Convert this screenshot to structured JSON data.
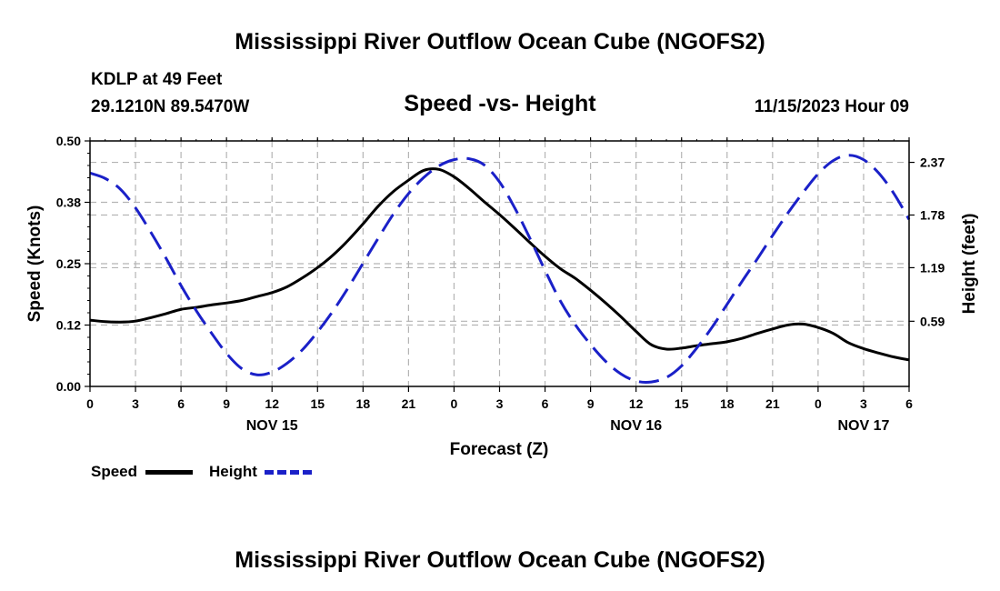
{
  "titles": {
    "main": "Mississippi River Outflow Ocean Cube (NGOFS2)",
    "main_repeat": "Mississippi River Outflow Ocean Cube (NGOFS2)"
  },
  "station": {
    "name": "KDLP at 49 Feet",
    "coords": "29.1210N  89.5470W",
    "datetime": "11/15/2023 Hour 09"
  },
  "legend": {
    "speed_label": "Speed",
    "height_label": "Height"
  },
  "colors": {
    "speed": "#000000",
    "height": "#1a20c8",
    "grid": "#b4b4b4"
  },
  "chart_data": {
    "type": "line",
    "title": "Speed -vs- Height",
    "xlabel": "Forecast (Z)",
    "ylabel": "Speed (Knots)",
    "y2label": "Height (feet)",
    "xlim": [
      0,
      54
    ],
    "ylim": [
      0,
      0.5
    ],
    "y2lim": [
      -0.14,
      2.61
    ],
    "x_ticks": [
      0,
      3,
      6,
      9,
      12,
      15,
      18,
      21,
      24,
      27,
      30,
      33,
      36,
      39,
      42,
      45,
      48,
      51,
      54
    ],
    "x_tick_labels": [
      "0",
      "3",
      "6",
      "9",
      "12",
      "15",
      "18",
      "21",
      "0",
      "3",
      "6",
      "9",
      "12",
      "15",
      "18",
      "21",
      "0",
      "3",
      "6"
    ],
    "y_ticks": [
      0,
      0.125,
      0.25,
      0.375,
      0.5
    ],
    "y_tick_labels": [
      "0.00",
      "0.12",
      "0.25",
      "0.38",
      "0.50"
    ],
    "y2_ticks": [
      0.59,
      1.19,
      1.78,
      2.37
    ],
    "y2_tick_labels": [
      "0.59",
      "1.19",
      "1.78",
      "2.37"
    ],
    "date_labels": [
      {
        "x": 12,
        "label": "NOV 15"
      },
      {
        "x": 36,
        "label": "NOV 16"
      },
      {
        "x": 51,
        "label": "NOV 17"
      }
    ],
    "grid": true,
    "series": [
      {
        "name": "Speed",
        "axis": "left",
        "style": "solid",
        "x": [
          0,
          1,
          2,
          3,
          4,
          5,
          6,
          7,
          8,
          9,
          10,
          11,
          12,
          13,
          14,
          15,
          16,
          17,
          18,
          19,
          20,
          21,
          22,
          23,
          24,
          25,
          26,
          27,
          28,
          29,
          30,
          31,
          32,
          33,
          34,
          35,
          36,
          37,
          38,
          39,
          40,
          41,
          42,
          43,
          44,
          45,
          46,
          47,
          48,
          49,
          50,
          51,
          52,
          53,
          54
        ],
        "values": [
          0.135,
          0.132,
          0.131,
          0.133,
          0.14,
          0.148,
          0.157,
          0.161,
          0.166,
          0.17,
          0.175,
          0.183,
          0.191,
          0.203,
          0.221,
          0.242,
          0.267,
          0.297,
          0.331,
          0.367,
          0.397,
          0.42,
          0.44,
          0.442,
          0.427,
          0.403,
          0.376,
          0.35,
          0.322,
          0.293,
          0.265,
          0.24,
          0.22,
          0.196,
          0.17,
          0.142,
          0.112,
          0.085,
          0.076,
          0.078,
          0.083,
          0.087,
          0.091,
          0.098,
          0.108,
          0.117,
          0.125,
          0.127,
          0.12,
          0.108,
          0.089,
          0.077,
          0.068,
          0.06,
          0.054
        ]
      },
      {
        "name": "Height",
        "axis": "right",
        "style": "dashed",
        "x": [
          0,
          1,
          2,
          3,
          4,
          5,
          6,
          7,
          8,
          9,
          10,
          11,
          12,
          13,
          14,
          15,
          16,
          17,
          18,
          19,
          20,
          21,
          22,
          23,
          24,
          25,
          26,
          27,
          28,
          29,
          30,
          31,
          32,
          33,
          34,
          35,
          36,
          37,
          38,
          39,
          40,
          41,
          42,
          43,
          44,
          45,
          46,
          47,
          48,
          49,
          50,
          51,
          52,
          53,
          54
        ],
        "values": [
          2.25,
          2.19,
          2.07,
          1.86,
          1.59,
          1.3,
          0.99,
          0.71,
          0.46,
          0.23,
          0.06,
          -0.01,
          0.02,
          0.12,
          0.27,
          0.47,
          0.7,
          0.96,
          1.24,
          1.52,
          1.79,
          2.02,
          2.2,
          2.33,
          2.4,
          2.41,
          2.34,
          2.15,
          1.86,
          1.52,
          1.16,
          0.82,
          0.55,
          0.33,
          0.14,
          0.0,
          -0.08,
          -0.09,
          -0.04,
          0.09,
          0.29,
          0.52,
          0.78,
          1.04,
          1.29,
          1.55,
          1.8,
          2.03,
          2.24,
          2.39,
          2.45,
          2.4,
          2.25,
          2.02,
          1.73
        ]
      }
    ]
  }
}
